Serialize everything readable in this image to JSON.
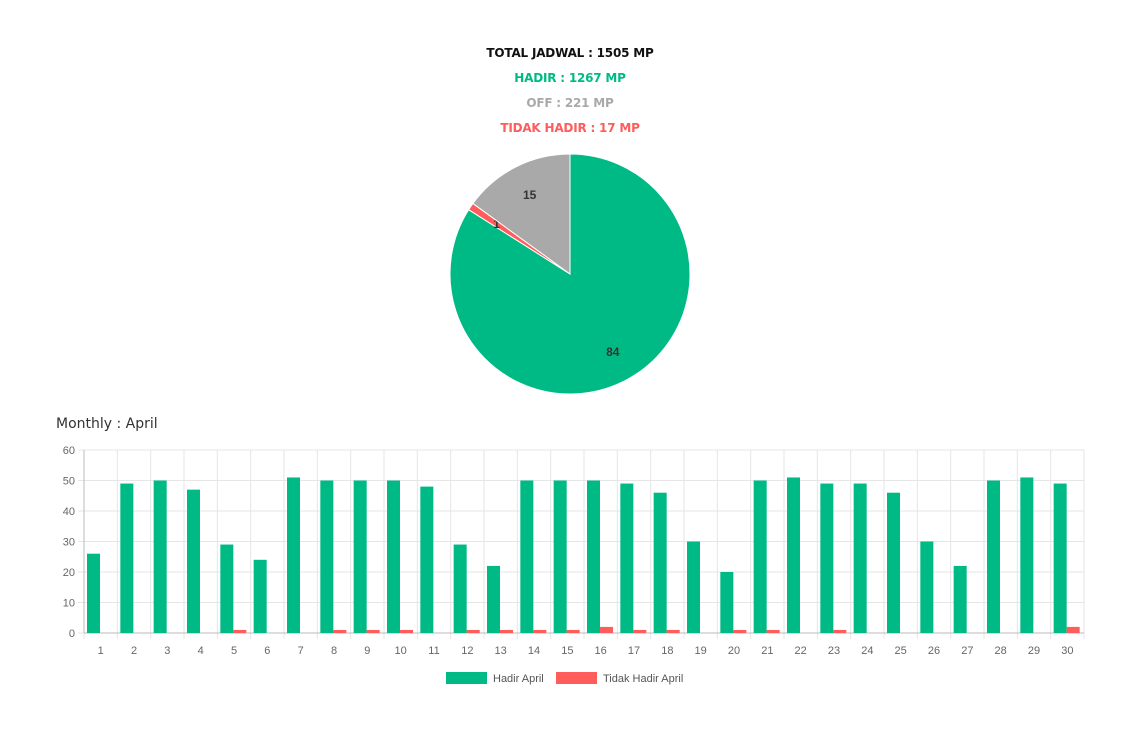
{
  "summary": {
    "total": "TOTAL JADWAL : 1505 MP",
    "hadir": "HADIR : 1267 MP",
    "off": "OFF : 221 MP",
    "tidak_hadir": "TIDAK HADIR : 17 MP"
  },
  "colors": {
    "hadir": "#00BA85",
    "off": "#A9A9A9",
    "tidak_hadir": "#FF5C5C",
    "total": "#111111",
    "grid": "#E6E6E6",
    "axis": "#BBBBBB"
  },
  "monthly_title": "Monthly : April",
  "chart_data": [
    {
      "type": "pie",
      "slices": [
        {
          "key": "hadir",
          "value": 84,
          "label": "84"
        },
        {
          "key": "tidak_hadir",
          "value": 1,
          "label": "1"
        },
        {
          "key": "off",
          "value": 15,
          "label": "15"
        }
      ]
    },
    {
      "type": "bar",
      "categories": [
        "1",
        "2",
        "3",
        "4",
        "5",
        "6",
        "7",
        "8",
        "9",
        "10",
        "11",
        "12",
        "13",
        "14",
        "15",
        "16",
        "17",
        "18",
        "19",
        "20",
        "21",
        "22",
        "23",
        "24",
        "25",
        "26",
        "27",
        "28",
        "29",
        "30"
      ],
      "series": [
        {
          "name": "Hadir April",
          "key": "hadir",
          "values": [
            26,
            49,
            50,
            47,
            29,
            24,
            51,
            50,
            50,
            50,
            48,
            29,
            22,
            50,
            50,
            50,
            49,
            46,
            30,
            20,
            50,
            51,
            49,
            49,
            46,
            30,
            22,
            50,
            51,
            49
          ]
        },
        {
          "name": "Tidak Hadir April",
          "key": "tidak_hadir",
          "values": [
            0,
            0,
            0,
            0,
            1,
            0,
            0,
            1,
            1,
            1,
            0,
            1,
            1,
            1,
            1,
            2,
            1,
            1,
            0,
            1,
            1,
            0,
            1,
            0,
            0,
            0,
            0,
            0,
            0,
            2
          ]
        }
      ],
      "ylim": [
        0,
        60
      ],
      "yticks": [
        0,
        10,
        20,
        30,
        40,
        50,
        60
      ],
      "grid": true,
      "legend": "bottom"
    }
  ]
}
